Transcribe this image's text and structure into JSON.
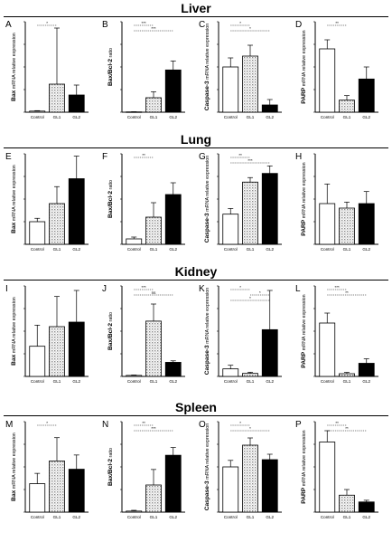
{
  "sections": [
    "Liver",
    "Lung",
    "Kidney",
    "Spleen"
  ],
  "chart_data": [
    {
      "panel": "A",
      "type": "bar",
      "section": "Liver",
      "ylabel_bold": "Bax",
      "ylabel_rest": " mRNA relative expression",
      "categories": [
        "Control",
        "GL1",
        "GL2"
      ],
      "values": [
        1.2,
        31,
        19
      ],
      "errors": [
        0.5,
        62,
        11
      ],
      "ylim": [
        0,
        100
      ],
      "sig": [
        "*"
      ]
    },
    {
      "panel": "B",
      "type": "bar",
      "section": "Liver",
      "ylabel_bold": "Bax/Bcl-2",
      "ylabel_rest": " ratio",
      "categories": [
        "Control",
        "GL1",
        "GL2"
      ],
      "values": [
        0.5,
        24,
        70
      ],
      "errors": [
        0.3,
        10,
        15
      ],
      "ylim": [
        0,
        150
      ],
      "sig": [
        "***",
        "***"
      ]
    },
    {
      "panel": "C",
      "type": "bar",
      "section": "Liver",
      "ylabel_bold": "Caspase-3",
      "ylabel_rest": " mRNA relative expression",
      "categories": [
        "Control",
        "GL1",
        "GL2"
      ],
      "values": [
        2.5,
        3.1,
        0.4
      ],
      "errors": [
        0.5,
        0.6,
        0.3
      ],
      "ylim": [
        0,
        5
      ],
      "sig": [
        "*",
        "*"
      ]
    },
    {
      "panel": "D",
      "type": "bar",
      "section": "Liver",
      "ylabel_bold": "PARP",
      "ylabel_rest": " mRNA relative expression",
      "categories": [
        "Control",
        "GL1",
        "GL2"
      ],
      "values": [
        4.2,
        0.8,
        2.2
      ],
      "errors": [
        0.6,
        0.3,
        0.8
      ],
      "ylim": [
        0,
        6
      ],
      "sig": [
        "**"
      ]
    },
    {
      "panel": "E",
      "type": "bar",
      "section": "Lung",
      "ylabel_bold": "Bax",
      "ylabel_rest": " mRNA relative expression",
      "categories": [
        "Control",
        "GL1",
        "GL2"
      ],
      "values": [
        1.0,
        1.8,
        2.9
      ],
      "errors": [
        0.15,
        0.75,
        1.0
      ],
      "ylim": [
        0,
        4
      ],
      "sig": []
    },
    {
      "panel": "F",
      "type": "bar",
      "section": "Lung",
      "ylabel_bold": "Bax/Bcl-2",
      "ylabel_rest": " ratio",
      "categories": [
        "Control",
        "GL1",
        "GL2"
      ],
      "values": [
        0.6,
        3.0,
        5.5
      ],
      "errors": [
        0.2,
        1.6,
        1.3
      ],
      "ylim": [
        0,
        10
      ],
      "sig": [
        "**"
      ]
    },
    {
      "panel": "G",
      "type": "bar",
      "section": "Lung",
      "ylabel_bold": "Caspase-3",
      "ylabel_rest": " mRNA relative expression",
      "categories": [
        "Control",
        "GL1",
        "GL2"
      ],
      "values": [
        1.2,
        2.05,
        2.28
      ],
      "errors": [
        0.15,
        0.12,
        0.2
      ],
      "ylim": [
        0.4,
        2.8
      ],
      "sig": [
        "**",
        "***"
      ]
    },
    {
      "panel": "H",
      "type": "bar",
      "section": "Lung",
      "ylabel_bold": "PARP",
      "ylabel_rest": " mRNA relative expression",
      "categories": [
        "Control",
        "GL1",
        "GL2"
      ],
      "values": [
        2.7,
        2.4,
        2.7
      ],
      "errors": [
        1.3,
        0.4,
        0.8
      ],
      "ylim": [
        0,
        6
      ],
      "sig": []
    },
    {
      "panel": "I",
      "type": "bar",
      "section": "Kidney",
      "ylabel_bold": "Bax",
      "ylabel_rest": " mRNA relative expression",
      "categories": [
        "Control",
        "GL1",
        "GL2"
      ],
      "values": [
        2.0,
        3.3,
        3.6
      ],
      "errors": [
        1.4,
        2.0,
        2.1
      ],
      "ylim": [
        0,
        6
      ],
      "sig": []
    },
    {
      "panel": "J",
      "type": "bar",
      "section": "Kidney",
      "ylabel_bold": "Bax/Bcl-2",
      "ylabel_rest": " ratio",
      "categories": [
        "Control",
        "GL1",
        "GL2"
      ],
      "values": [
        1.0,
        55,
        14
      ],
      "errors": [
        0.4,
        17,
        1.5
      ],
      "ylim": [
        0,
        90
      ],
      "sig": [
        "***",
        "ns"
      ]
    },
    {
      "panel": "K",
      "type": "bar",
      "section": "Kidney",
      "ylabel_bold": "Caspase-3",
      "ylabel_rest": " mRNA relative expression",
      "categories": [
        "Control",
        "GL1",
        "GL2"
      ],
      "values": [
        2.5,
        1.0,
        15.5
      ],
      "errors": [
        1.2,
        0.4,
        13
      ],
      "ylim": [
        0,
        30
      ],
      "sig": [
        "*",
        "*",
        "*"
      ]
    },
    {
      "panel": "L",
      "type": "bar",
      "section": "Kidney",
      "ylabel_bold": "PARP",
      "ylabel_rest": " mRNA relative expression",
      "categories": [
        "Control",
        "GL1",
        "GL2"
      ],
      "values": [
        11.8,
        0.6,
        2.9
      ],
      "errors": [
        2.2,
        0.3,
        1.0
      ],
      "ylim": [
        0,
        20
      ],
      "sig": [
        "***",
        "**"
      ]
    },
    {
      "panel": "M",
      "type": "bar",
      "section": "Spleen",
      "ylabel_bold": "Bax",
      "ylabel_rest": " mRNA relative expression",
      "categories": [
        "Control",
        "GL1",
        "GL2"
      ],
      "values": [
        1.1,
        1.98,
        1.66
      ],
      "errors": [
        0.4,
        0.9,
        0.55
      ],
      "ylim": [
        0,
        3.5
      ],
      "sig": [
        "*"
      ]
    },
    {
      "panel": "N",
      "type": "bar",
      "section": "Spleen",
      "ylabel_bold": "Bax/Bcl-2",
      "ylabel_rest": " ratio",
      "categories": [
        "Control",
        "GL1",
        "GL2"
      ],
      "values": [
        0.4,
        10.5,
        22
      ],
      "errors": [
        0.3,
        6,
        3
      ],
      "ylim": [
        0,
        35
      ],
      "sig": [
        "**",
        "***"
      ]
    },
    {
      "panel": "O",
      "type": "bar",
      "section": "Spleen",
      "ylabel_bold": "Caspase-3",
      "ylabel_rest": " mRNA relative expression",
      "categories": [
        "Control",
        "GL1",
        "GL2"
      ],
      "values": [
        1.75,
        2.35,
        1.95
      ],
      "errors": [
        0.18,
        0.2,
        0.15
      ],
      "ylim": [
        0.5,
        3.0
      ],
      "sig": [
        "*",
        "*"
      ]
    },
    {
      "panel": "P",
      "type": "bar",
      "section": "Spleen",
      "ylabel_bold": "PARP",
      "ylabel_rest": " mRNA relative expression",
      "categories": [
        "Control",
        "GL1",
        "GL2"
      ],
      "values": [
        6.2,
        1.5,
        0.9
      ],
      "errors": [
        1.0,
        0.5,
        0.15
      ],
      "ylim": [
        0,
        8
      ],
      "sig": [
        "**",
        "**"
      ]
    }
  ]
}
